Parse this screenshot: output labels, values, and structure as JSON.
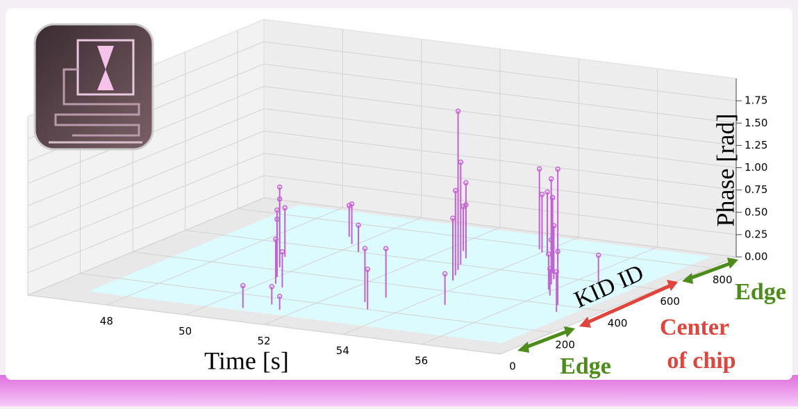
{
  "chart_data": {
    "type": "scatter3d",
    "color": "#c65fd6",
    "xlabel": "Time [s]",
    "ylabel": "KID ID",
    "zlabel": "Phase [rad]",
    "xlim": [
      46,
      58
    ],
    "ylim": [
      0,
      900
    ],
    "zlim": [
      0,
      2
    ],
    "xticks": [
      48,
      50,
      52,
      54,
      56
    ],
    "yticks": [
      0,
      200,
      400,
      600,
      800
    ],
    "zticks": [
      {
        "value": 0,
        "label": "0.00"
      },
      {
        "value": 0.25,
        "label": "0.25"
      },
      {
        "value": 0.5,
        "label": "0.50"
      },
      {
        "value": 0.75,
        "label": "0.75"
      },
      {
        "value": 1,
        "label": "1.00"
      },
      {
        "value": 1.25,
        "label": "1.25"
      },
      {
        "value": 1.5,
        "label": "1.50"
      },
      {
        "value": 1.75,
        "label": "1.75"
      }
    ],
    "grid": true,
    "x": [
      49.2,
      49.4,
      49.6,
      49.8,
      50.0,
      50.3,
      50.6,
      49.5,
      49.9,
      50.4,
      52.4,
      52.6,
      52.8,
      53.0,
      53.2,
      53.4,
      53.6,
      53.1,
      52.9,
      53.3,
      54.2,
      54.5,
      54.8,
      55.0,
      55.2,
      55.5,
      55.7,
      55.9,
      56.2,
      54.6,
      51.2,
      51.6,
      56.8,
      57.1,
      50.8,
      53.8,
      54.0,
      56.5
    ],
    "y": [
      500,
      450,
      420,
      380,
      350,
      300,
      280,
      700,
      650,
      600,
      700,
      680,
      650,
      600,
      560,
      520,
      480,
      300,
      250,
      200,
      750,
      720,
      700,
      650,
      620,
      580,
      540,
      500,
      460,
      300,
      150,
      120,
      400,
      350,
      100,
      780,
      760,
      600
    ],
    "z": [
      0.55,
      0.72,
      0.9,
      0.6,
      0.75,
      0.5,
      0.4,
      0.35,
      0.45,
      0.3,
      0.5,
      0.8,
      0.6,
      1.15,
      1.78,
      0.95,
      0.7,
      0.55,
      0.6,
      0.45,
      0.7,
      0.9,
      1.05,
      0.8,
      0.85,
      0.6,
      0.5,
      0.4,
      0.3,
      0.35,
      0.2,
      0.15,
      0.6,
      0.45,
      0.25,
      0.9,
      0.65,
      0.3
    ],
    "annotations": [
      {
        "text": "Edge",
        "color": "#4c8c1a"
      },
      {
        "text": "Center",
        "color": "#e0443a"
      },
      {
        "text": "of chip",
        "color": "#e0443a"
      },
      {
        "text": "Edge",
        "color": "#4c8c1a"
      }
    ]
  }
}
